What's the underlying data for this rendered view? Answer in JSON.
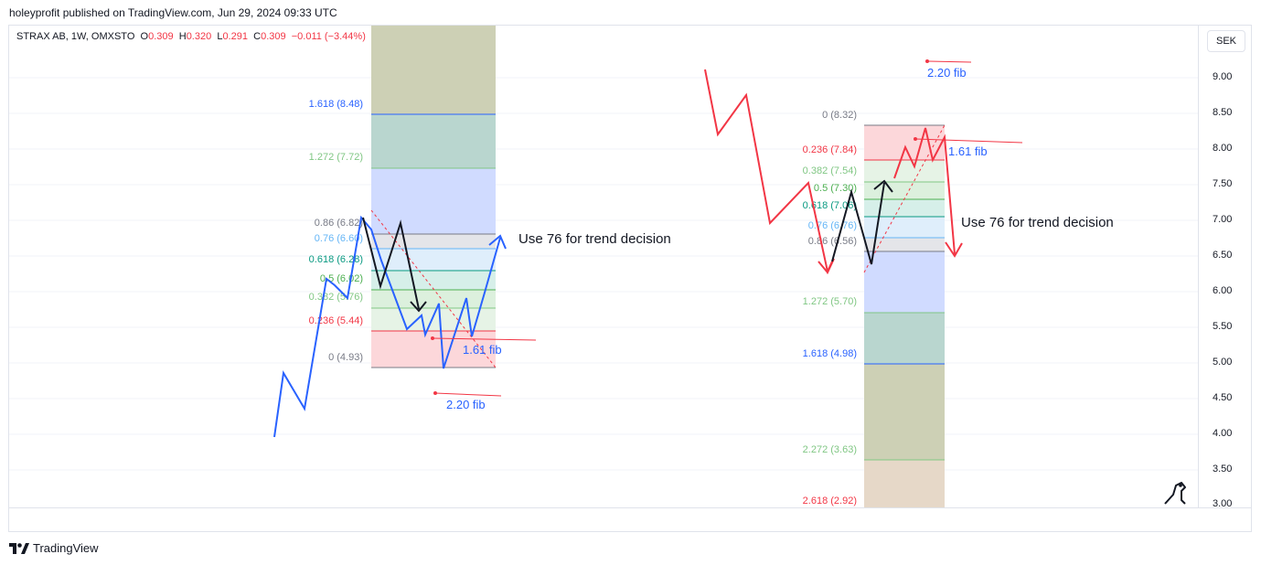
{
  "header": {
    "text": "holeyprofit published on TradingView.com, Jun 29, 2024 09:33 UTC"
  },
  "legend": {
    "symbol": "STRAX AB, 1W, OMXSTO",
    "open_label": "O",
    "open": "0.309",
    "high_label": "H",
    "high": "0.320",
    "low_label": "L",
    "low": "0.291",
    "close_label": "C",
    "close": "0.309",
    "change": "−0.011 (−3.44%)"
  },
  "currency_button": "SEK",
  "y_axis": {
    "ticks": [
      "9.00",
      "8.50",
      "8.00",
      "7.50",
      "7.00",
      "6.50",
      "6.00",
      "5.50",
      "5.00",
      "4.50",
      "4.00",
      "3.50",
      "3.00"
    ]
  },
  "left_fib": {
    "levels": [
      "1.618 (8.48)",
      "1.272 (7.72)",
      "0.86 (6.82)",
      "0.76 (6.60)",
      "0.618 (6.28)",
      "0.5 (6.02)",
      "0.382 (5.76)",
      "0.236 (5.44)",
      "0 (4.93)"
    ],
    "colors": [
      "#2962ff",
      "#81c784",
      "#787b86",
      "#64b5f6",
      "#089981",
      "#4caf50",
      "#81c784",
      "#f23645",
      "#787b86"
    ]
  },
  "right_fib": {
    "levels": [
      "0 (8.32)",
      "0.236 (7.84)",
      "0.382 (7.54)",
      "0.5 (7.30)",
      "0.618 (7.06)",
      "0.76 (6.76)",
      "0.86 (6.56)",
      "1.272 (5.70)",
      "1.618 (4.98)",
      "2.272 (3.63)",
      "2.618 (2.92)"
    ],
    "colors": [
      "#787b86",
      "#f23645",
      "#81c784",
      "#4caf50",
      "#089981",
      "#64b5f6",
      "#787b86",
      "#81c784",
      "#2962ff",
      "#81c784",
      "#f23645"
    ]
  },
  "annotations": {
    "left_note": "Use 76 for trend decision",
    "right_note": "Use 76 for trend decision",
    "left_161": "1.61 fib",
    "left_220": "2.20 fib",
    "right_161": "1.61 fib",
    "right_220": "2.20 fib"
  },
  "brand": "TradingView",
  "colors": {
    "blue_path": "#2962ff",
    "red_path": "#f23645",
    "black_path": "#131722"
  }
}
